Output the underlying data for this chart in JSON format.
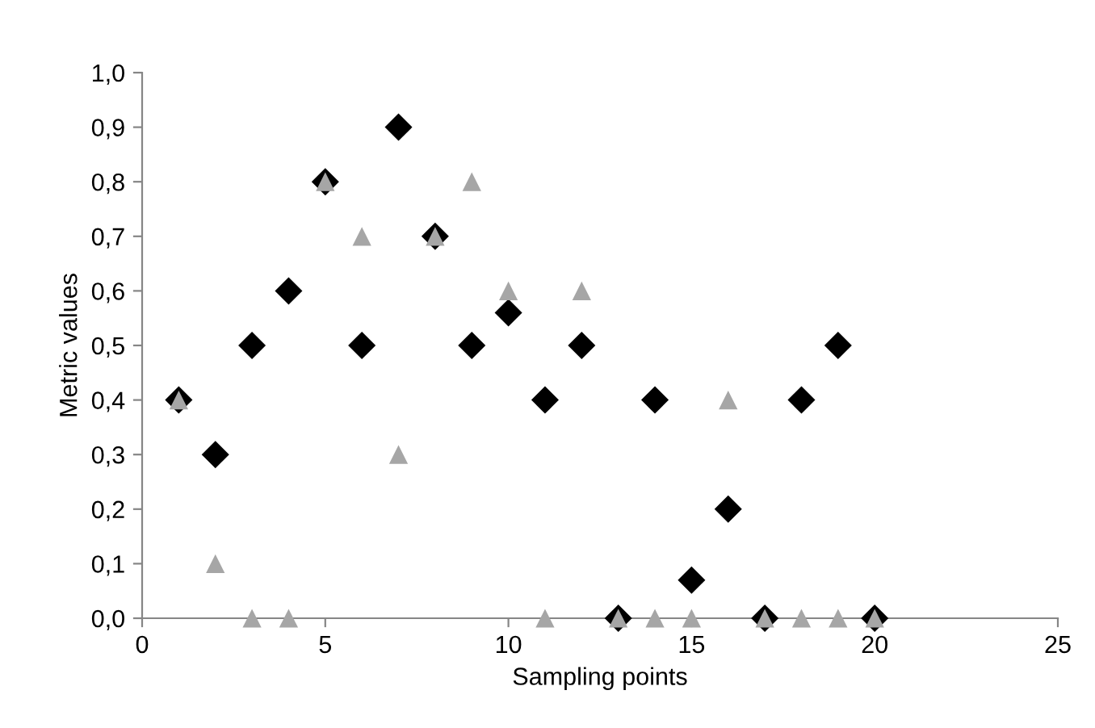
{
  "chart_data": {
    "type": "scatter",
    "xlabel": "Sampling points",
    "ylabel": "Metric values",
    "xlim": [
      0,
      25
    ],
    "xticks": [
      0,
      5,
      10,
      15,
      20,
      25
    ],
    "ylim": [
      0,
      1
    ],
    "yticks": [
      {
        "value": 0,
        "label": "0,0"
      },
      {
        "value": 0.1,
        "label": "0,1"
      },
      {
        "value": 0.2,
        "label": "0,2"
      },
      {
        "value": 0.3,
        "label": "0,3"
      },
      {
        "value": 0.4,
        "label": "0,4"
      },
      {
        "value": 0.5,
        "label": "0,5"
      },
      {
        "value": 0.6,
        "label": "0,6"
      },
      {
        "value": 0.7,
        "label": "0,7"
      },
      {
        "value": 0.8,
        "label": "0,8"
      },
      {
        "value": 0.9,
        "label": "0,9"
      },
      {
        "value": 1,
        "label": "1,0"
      }
    ],
    "grid": false,
    "legend": false,
    "series": [
      {
        "color": "#000000",
        "marker": "diamond",
        "x": [
          1,
          2,
          3,
          4,
          5,
          6,
          7,
          8,
          9,
          10,
          11,
          12,
          13,
          14,
          15,
          16,
          17,
          18,
          19,
          20
        ],
        "values": [
          0.4,
          0.3,
          0.5,
          0.6,
          0.8,
          0.5,
          0.9,
          0.7,
          0.5,
          0.56,
          0.4,
          0.5,
          0,
          0.4,
          0.07,
          0.2,
          0,
          0.4,
          0.5,
          0
        ]
      },
      {
        "color": "#a6a6a6",
        "marker": "triangle",
        "x": [
          1,
          2,
          3,
          4,
          5,
          6,
          7,
          8,
          9,
          10,
          11,
          12,
          13,
          14,
          15,
          16,
          17,
          18,
          19,
          20
        ],
        "values": [
          0.4,
          0.1,
          0,
          0,
          0.8,
          0.7,
          0.3,
          0.7,
          0.8,
          0.6,
          0,
          0.6,
          0,
          0,
          0,
          0.4,
          0,
          0,
          0,
          0
        ]
      }
    ]
  }
}
